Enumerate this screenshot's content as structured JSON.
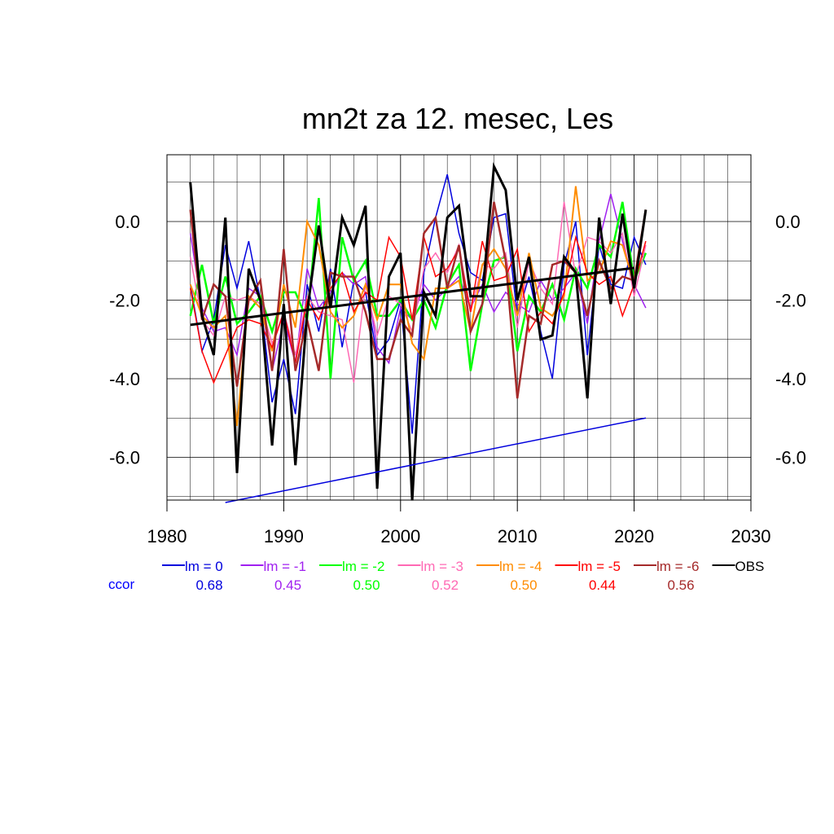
{
  "chart_data": {
    "type": "line",
    "title": "mn2t za 12. mesec, Les",
    "xlabel": "",
    "ylabel": "",
    "xlim": [
      1980,
      2030
    ],
    "ylim": [
      -7.2,
      1.4
    ],
    "x_ticks": [
      1980,
      1990,
      2000,
      2010,
      2020,
      2030
    ],
    "y_ticks": [
      0.0,
      -2.0,
      -4.0,
      -6.0
    ],
    "y_tick_labels": [
      "0.0",
      "-2.0",
      "-4.0",
      "-6.0"
    ],
    "grid": true,
    "x": [
      1982,
      1983,
      1984,
      1985,
      1986,
      1987,
      1988,
      1989,
      1990,
      1991,
      1992,
      1993,
      1994,
      1995,
      1996,
      1997,
      1998,
      1999,
      2000,
      2001,
      2002,
      2003,
      2004,
      2005,
      2006,
      2007,
      2008,
      2009,
      2010,
      2011,
      2012,
      2013,
      2014,
      2015,
      2016,
      2017,
      2018,
      2019,
      2020,
      2021
    ],
    "series": [
      {
        "name": "lm = 0",
        "color": "#0000dd",
        "width": 1.5,
        "values": [
          -1.6,
          -3.3,
          -2.5,
          -0.6,
          -1.7,
          -0.5,
          -2.0,
          -4.6,
          -3.5,
          -4.9,
          -1.6,
          -2.8,
          -1.2,
          -3.2,
          -1.5,
          -1.8,
          -3.4,
          -3.0,
          -2.0,
          -5.4,
          -1.3,
          0.1,
          1.2,
          -0.3,
          -1.3,
          -1.5,
          0.1,
          0.2,
          -2.4,
          -1.4,
          -2.8,
          -4.0,
          -1.1,
          0.0,
          -3.4,
          -0.6,
          -1.6,
          -1.7,
          -0.4,
          -1.1
        ]
      },
      {
        "name": "lm = -1",
        "color": "#a020f0",
        "width": 1.5,
        "values": [
          -0.3,
          -2.2,
          -2.8,
          -2.7,
          -3.4,
          -1.7,
          -1.9,
          -3.8,
          -2.5,
          -3.6,
          -1.2,
          -2.2,
          -1.8,
          -1.3,
          -1.6,
          -1.4,
          -3.2,
          -3.6,
          -2.2,
          -2.5,
          -1.6,
          -2.0,
          -1.7,
          -1.4,
          -2.2,
          -1.6,
          -2.3,
          -1.8,
          -2.1,
          -2.3,
          -1.5,
          -2.0,
          -1.7,
          -1.3,
          -2.6,
          -0.5,
          0.7,
          -0.5,
          -1.6,
          -2.2
        ]
      },
      {
        "name": "lm = -2",
        "color": "#00ff00",
        "width": 2.5,
        "values": [
          -2.4,
          -1.1,
          -2.6,
          -1.4,
          -2.6,
          -2.3,
          -1.9,
          -2.8,
          -1.8,
          -1.8,
          -2.5,
          0.6,
          -4.0,
          -0.4,
          -1.5,
          -1.0,
          -2.4,
          -2.4,
          -2.0,
          -2.5,
          -2.0,
          -2.7,
          -1.6,
          -1.1,
          -3.8,
          -2.1,
          -1.0,
          -0.9,
          -3.3,
          -1.9,
          -2.3,
          -1.6,
          -2.5,
          -1.2,
          -1.7,
          -0.6,
          -0.9,
          0.5,
          -1.5,
          -0.8
        ]
      },
      {
        "name": "lm = -3",
        "color": "#ff69b4",
        "width": 1.5,
        "values": [
          -0.9,
          -2.5,
          -2.9,
          -1.9,
          -2.0,
          -1.9,
          -2.1,
          -3.1,
          -2.3,
          -3.4,
          -1.9,
          -2.3,
          -2.4,
          -2.5,
          -4.1,
          -1.6,
          -2.9,
          -1.9,
          -2.1,
          -2.8,
          -1.2,
          -0.8,
          -1.3,
          -0.6,
          -2.3,
          -1.1,
          -1.2,
          -0.8,
          -2.7,
          -1.0,
          -1.7,
          -2.1,
          0.5,
          -1.4,
          -0.4,
          -0.5,
          -0.8,
          -0.3,
          -1.9,
          -0.6
        ]
      },
      {
        "name": "lm = -4",
        "color": "#ff8c00",
        "width": 2.0,
        "values": [
          -1.6,
          -2.4,
          -2.7,
          -2.4,
          -5.2,
          -1.9,
          -2.2,
          -3.3,
          -1.6,
          -2.7,
          0.0,
          -0.6,
          -2.3,
          -2.7,
          -2.4,
          -1.6,
          -2.5,
          -1.6,
          -1.6,
          -3.1,
          -3.5,
          -1.7,
          -1.7,
          -1.5,
          -2.8,
          -1.1,
          -0.7,
          -1.2,
          -2.4,
          -0.8,
          -2.2,
          -2.4,
          -1.9,
          0.9,
          -1.5,
          -1.3,
          -0.5,
          -0.6,
          -1.6,
          0.3
        ]
      },
      {
        "name": "lm = -5",
        "color": "#ff0000",
        "width": 1.5,
        "values": [
          -1.7,
          -3.3,
          -4.1,
          -3.4,
          -2.7,
          -2.5,
          -2.6,
          -3.2,
          -2.3,
          -3.6,
          -2.0,
          -2.5,
          -1.7,
          -1.3,
          -2.3,
          -1.8,
          -2.0,
          -0.4,
          -0.9,
          -2.5,
          -0.4,
          -1.4,
          -1.2,
          -0.7,
          -2.3,
          -0.5,
          -1.5,
          -1.4,
          -0.7,
          -2.8,
          -2.3,
          -2.6,
          -1.8,
          -0.4,
          -1.3,
          -1.6,
          -1.4,
          -2.4,
          -1.6,
          -0.5
        ]
      },
      {
        "name": "lm = -6",
        "color": "#a52a2a",
        "width": 2.5,
        "values": [
          0.3,
          -2.5,
          -1.6,
          -1.9,
          -4.2,
          -2.0,
          -1.5,
          -3.8,
          -0.7,
          -3.8,
          -2.5,
          -3.8,
          -1.3,
          -1.4,
          -1.4,
          -2.3,
          -3.5,
          -3.5,
          -2.5,
          -2.9,
          -0.3,
          0.1,
          -1.7,
          -0.6,
          -2.8,
          -2.1,
          0.5,
          -1.0,
          -4.5,
          -2.4,
          -2.6,
          -1.1,
          -1.0,
          -1.3,
          -2.4,
          -1.0,
          -1.7,
          -1.4,
          -1.5,
          0.3
        ]
      },
      {
        "name": "OBS",
        "color": "#000000",
        "width": 3.0,
        "values": [
          1.0,
          -2.4,
          -3.4,
          0.1,
          -6.4,
          -1.2,
          -2.0,
          -5.7,
          -2.1,
          -6.2,
          -2.3,
          -0.1,
          -2.2,
          0.1,
          -0.6,
          0.4,
          -6.8,
          -1.4,
          -0.8,
          -7.1,
          -1.8,
          -2.4,
          0.1,
          0.4,
          -1.9,
          -1.9,
          1.4,
          0.8,
          -2.0,
          -0.9,
          -3.0,
          -2.9,
          -0.9,
          -1.3,
          -4.5,
          0.1,
          -2.1,
          0.2,
          -1.7,
          0.3
        ]
      }
    ],
    "trend_lines": [
      {
        "name": "OBS trend",
        "color": "#000000",
        "width": 3.0,
        "x": [
          1982,
          2020
        ],
        "y": [
          -2.63,
          -1.18
        ]
      },
      {
        "name": "trend",
        "color": "#0000dd",
        "width": 1.5,
        "x": [
          1985,
          2021
        ],
        "y": [
          -7.15,
          -5.0
        ]
      }
    ],
    "legend_position": "bottom",
    "legend": {
      "ccor_label": "ccor",
      "ccor_color": "#0000ff",
      "items": [
        {
          "label": "lm = 0",
          "value": "0.68",
          "color": "#0000dd"
        },
        {
          "label": "lm = -1",
          "value": "0.45",
          "color": "#a020f0"
        },
        {
          "label": "lm = -2",
          "value": "0.50",
          "color": "#00ff00"
        },
        {
          "label": "lm = -3",
          "value": "0.52",
          "color": "#ff69b4"
        },
        {
          "label": "lm = -4",
          "value": "0.50",
          "color": "#ff8c00"
        },
        {
          "label": "lm = -5",
          "value": "0.44",
          "color": "#ff0000"
        },
        {
          "label": "lm = -6",
          "value": "0.56",
          "color": "#a52a2a"
        },
        {
          "label": "OBS",
          "value": "",
          "color": "#000000"
        }
      ]
    }
  }
}
